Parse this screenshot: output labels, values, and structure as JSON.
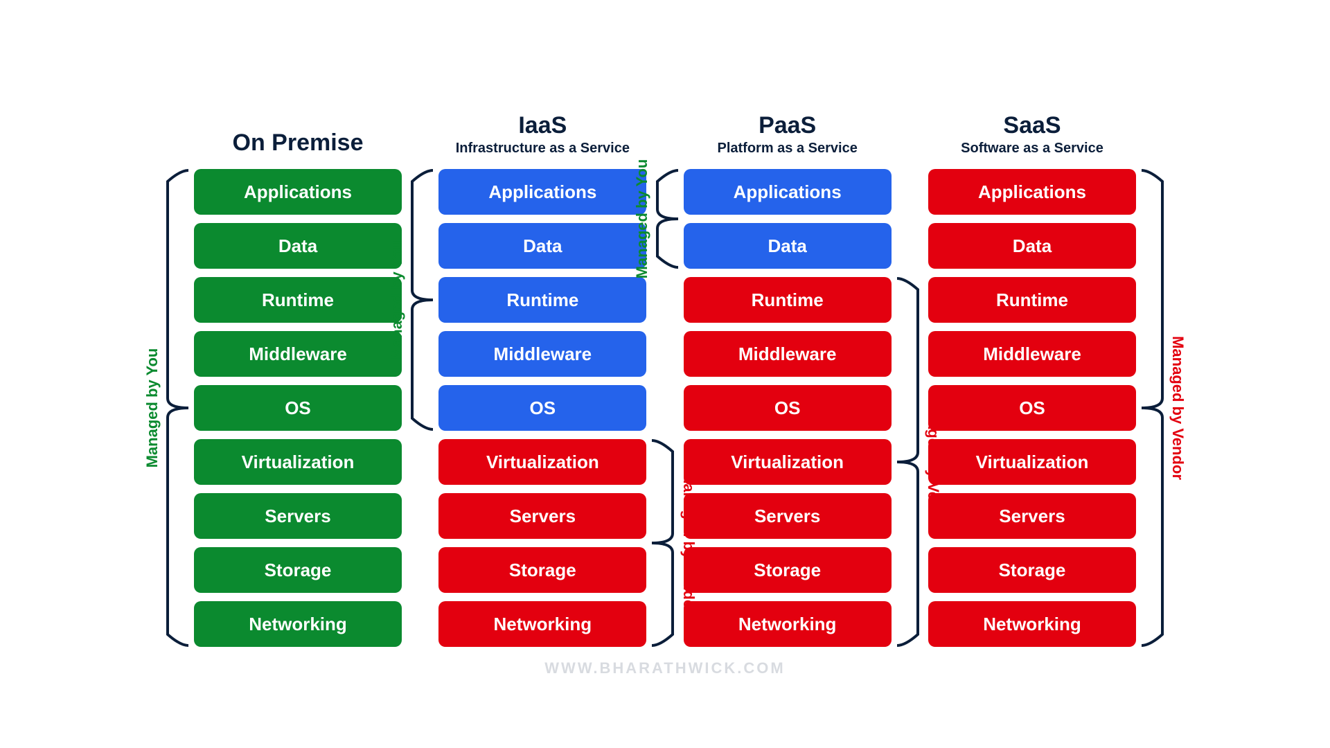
{
  "structure_type": "infographic",
  "background_color": "#ffffff",
  "title_color": "#0b1e3a",
  "brace_color": "#0b1e3a",
  "you_color": "#0b8a2f",
  "vendor_color": "#e3000f",
  "footer": "WWW.BHARATHWICK.COM",
  "footer_color": "#d8dbe0",
  "layers": [
    "Applications",
    "Data",
    "Runtime",
    "Middleware",
    "OS",
    "Virtualization",
    "Servers",
    "Storage",
    "Networking"
  ],
  "layer_height": 66,
  "layer_gap": 12,
  "layer_radius": 10,
  "layer_fontsize": 26,
  "layer_text_color": "#ffffff",
  "title_fontsize": 34,
  "subtitle_fontsize": 20,
  "label_fontsize": 22,
  "colors": {
    "green": "#0b8a2f",
    "blue": "#2563eb",
    "red": "#e3000f"
  },
  "columns": [
    {
      "key": "onprem",
      "title": "On Premise",
      "subtitle": "",
      "colors": [
        "green",
        "green",
        "green",
        "green",
        "green",
        "green",
        "green",
        "green",
        "green"
      ],
      "you_span": [
        0,
        9
      ],
      "vendor_span": null,
      "brace_side": "left"
    },
    {
      "key": "iaas",
      "title": "IaaS",
      "subtitle": "Infrastructure as a Service",
      "colors": [
        "blue",
        "blue",
        "blue",
        "blue",
        "blue",
        "red",
        "red",
        "red",
        "red"
      ],
      "you_span": [
        0,
        5
      ],
      "vendor_span": [
        5,
        9
      ],
      "brace_side": "left-right"
    },
    {
      "key": "paas",
      "title": "PaaS",
      "subtitle": "Platform as a Service",
      "colors": [
        "blue",
        "blue",
        "red",
        "red",
        "red",
        "red",
        "red",
        "red",
        "red"
      ],
      "you_span": [
        0,
        2
      ],
      "vendor_span": [
        2,
        9
      ],
      "brace_side": "left-right"
    },
    {
      "key": "saas",
      "title": "SaaS",
      "subtitle": "Software as a Service",
      "colors": [
        "red",
        "red",
        "red",
        "red",
        "red",
        "red",
        "red",
        "red",
        "red"
      ],
      "you_span": null,
      "vendor_span": [
        0,
        9
      ],
      "brace_side": "right"
    }
  ],
  "labels": {
    "you": "Managed by You",
    "vendor": "Managed by Vendor"
  }
}
